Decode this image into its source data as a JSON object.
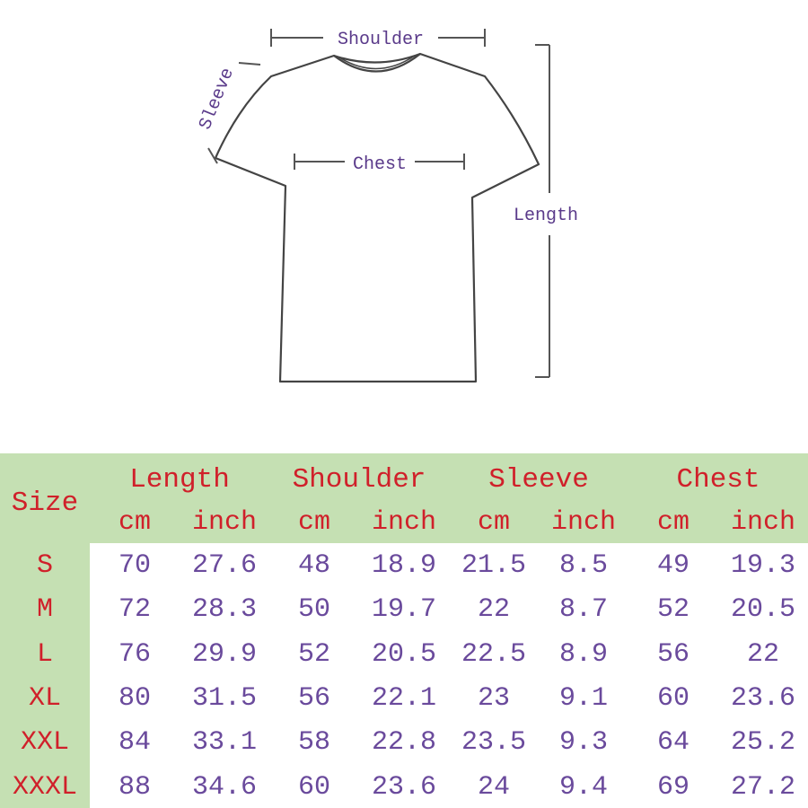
{
  "diagram": {
    "labels": {
      "shoulder": "Shoulder",
      "sleeve": "Sleeve",
      "chest": "Chest",
      "length": "Length"
    }
  },
  "table": {
    "size_header": "Size",
    "groups": [
      "Length",
      "Shoulder",
      "Sleeve",
      "Chest"
    ],
    "units": [
      "cm",
      "inch",
      "cm",
      "inch",
      "cm",
      "inch",
      "cm",
      "inch"
    ],
    "rows": [
      {
        "size": "S",
        "values": [
          "70",
          "27.6",
          "48",
          "18.9",
          "21.5",
          "8.5",
          "49",
          "19.3"
        ]
      },
      {
        "size": "M",
        "values": [
          "72",
          "28.3",
          "50",
          "19.7",
          "22",
          "8.7",
          "52",
          "20.5"
        ]
      },
      {
        "size": "L",
        "values": [
          "76",
          "29.9",
          "52",
          "20.5",
          "22.5",
          "8.9",
          "56",
          "22"
        ]
      },
      {
        "size": "XL",
        "values": [
          "80",
          "31.5",
          "56",
          "22.1",
          "23",
          "9.1",
          "60",
          "23.6"
        ]
      },
      {
        "size": "XXL",
        "values": [
          "84",
          "33.1",
          "58",
          "22.8",
          "23.5",
          "9.3",
          "64",
          "25.2"
        ]
      },
      {
        "size": "XXXL",
        "values": [
          "88",
          "34.6",
          "60",
          "23.6",
          "24",
          "9.4",
          "69",
          "27.2"
        ]
      }
    ]
  },
  "colors": {
    "header_bg": "#c5e0b3",
    "header_text": "#d0202a",
    "value_text": "#6a4a9c",
    "label_text": "#5a3a8a"
  }
}
